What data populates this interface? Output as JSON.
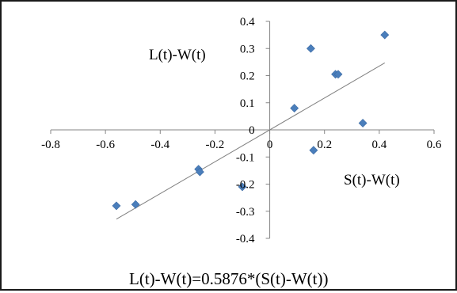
{
  "chart_data": {
    "type": "scatter",
    "x_label": "S(t)-W(t)",
    "y_label": "L(t)-W(t)",
    "equation": "L(t)-W(t)=0.5876*(S(t)-W(t))",
    "xlim": [
      -0.8,
      0.6
    ],
    "ylim": [
      -0.4,
      0.4
    ],
    "x_ticks": [
      -0.8,
      -0.6,
      -0.4,
      -0.2,
      0,
      0.2,
      0.4,
      0.6
    ],
    "y_ticks": [
      -0.4,
      -0.3,
      -0.2,
      -0.1,
      0,
      0.1,
      0.2,
      0.3,
      0.4
    ],
    "x_tick_labels": [
      "-0.8",
      "-0.6",
      "-0.4",
      "-0.2",
      "0",
      "0.2",
      "0.4",
      "0.6"
    ],
    "y_tick_labels": [
      "-0.4",
      "-0.3",
      "-0.2",
      "-0.1",
      "0",
      "0.1",
      "0.2",
      "0.3",
      "0.4"
    ],
    "grid": false,
    "legend": false,
    "marker": "diamond",
    "marker_color": "#4a7ebb",
    "trendline_color": "#7f7f7f",
    "trendline": {
      "slope": 0.5876,
      "intercept": 0,
      "x_range": [
        -0.56,
        0.42
      ]
    },
    "points": [
      {
        "x": -0.56,
        "y": -0.28
      },
      {
        "x": -0.49,
        "y": -0.275
      },
      {
        "x": -0.26,
        "y": -0.145
      },
      {
        "x": -0.255,
        "y": -0.155
      },
      {
        "x": -0.1,
        "y": -0.21
      },
      {
        "x": 0.09,
        "y": 0.08
      },
      {
        "x": 0.15,
        "y": 0.3
      },
      {
        "x": 0.16,
        "y": -0.075
      },
      {
        "x": 0.24,
        "y": 0.205
      },
      {
        "x": 0.25,
        "y": 0.205
      },
      {
        "x": 0.34,
        "y": 0.025
      },
      {
        "x": 0.42,
        "y": 0.35
      }
    ]
  }
}
